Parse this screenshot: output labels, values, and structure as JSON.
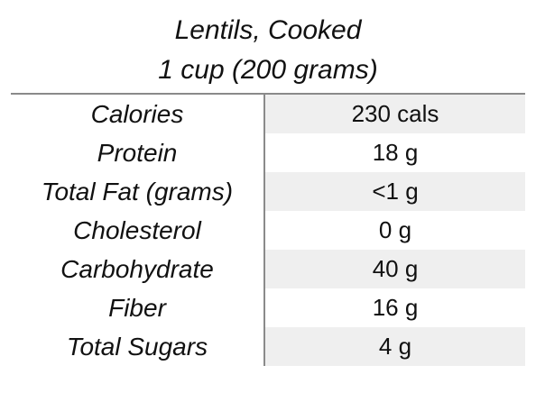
{
  "header": {
    "title": "Lentils, Cooked",
    "serving": "1 cup (200 grams)"
  },
  "nutrition": {
    "rows": [
      {
        "label": "Calories",
        "value": "230 cals"
      },
      {
        "label": "Protein",
        "value": "18 g"
      },
      {
        "label": "Total Fat (grams)",
        "value": "<1 g"
      },
      {
        "label": "Cholesterol",
        "value": "0 g"
      },
      {
        "label": "Carbohydrate",
        "value": "40 g"
      },
      {
        "label": "Fiber",
        "value": "16 g"
      },
      {
        "label": "Total Sugars",
        "value": "4 g"
      }
    ]
  },
  "colors": {
    "shaded_cell": "#efefef",
    "rule": "#8a8a8a",
    "text": "#111111"
  }
}
